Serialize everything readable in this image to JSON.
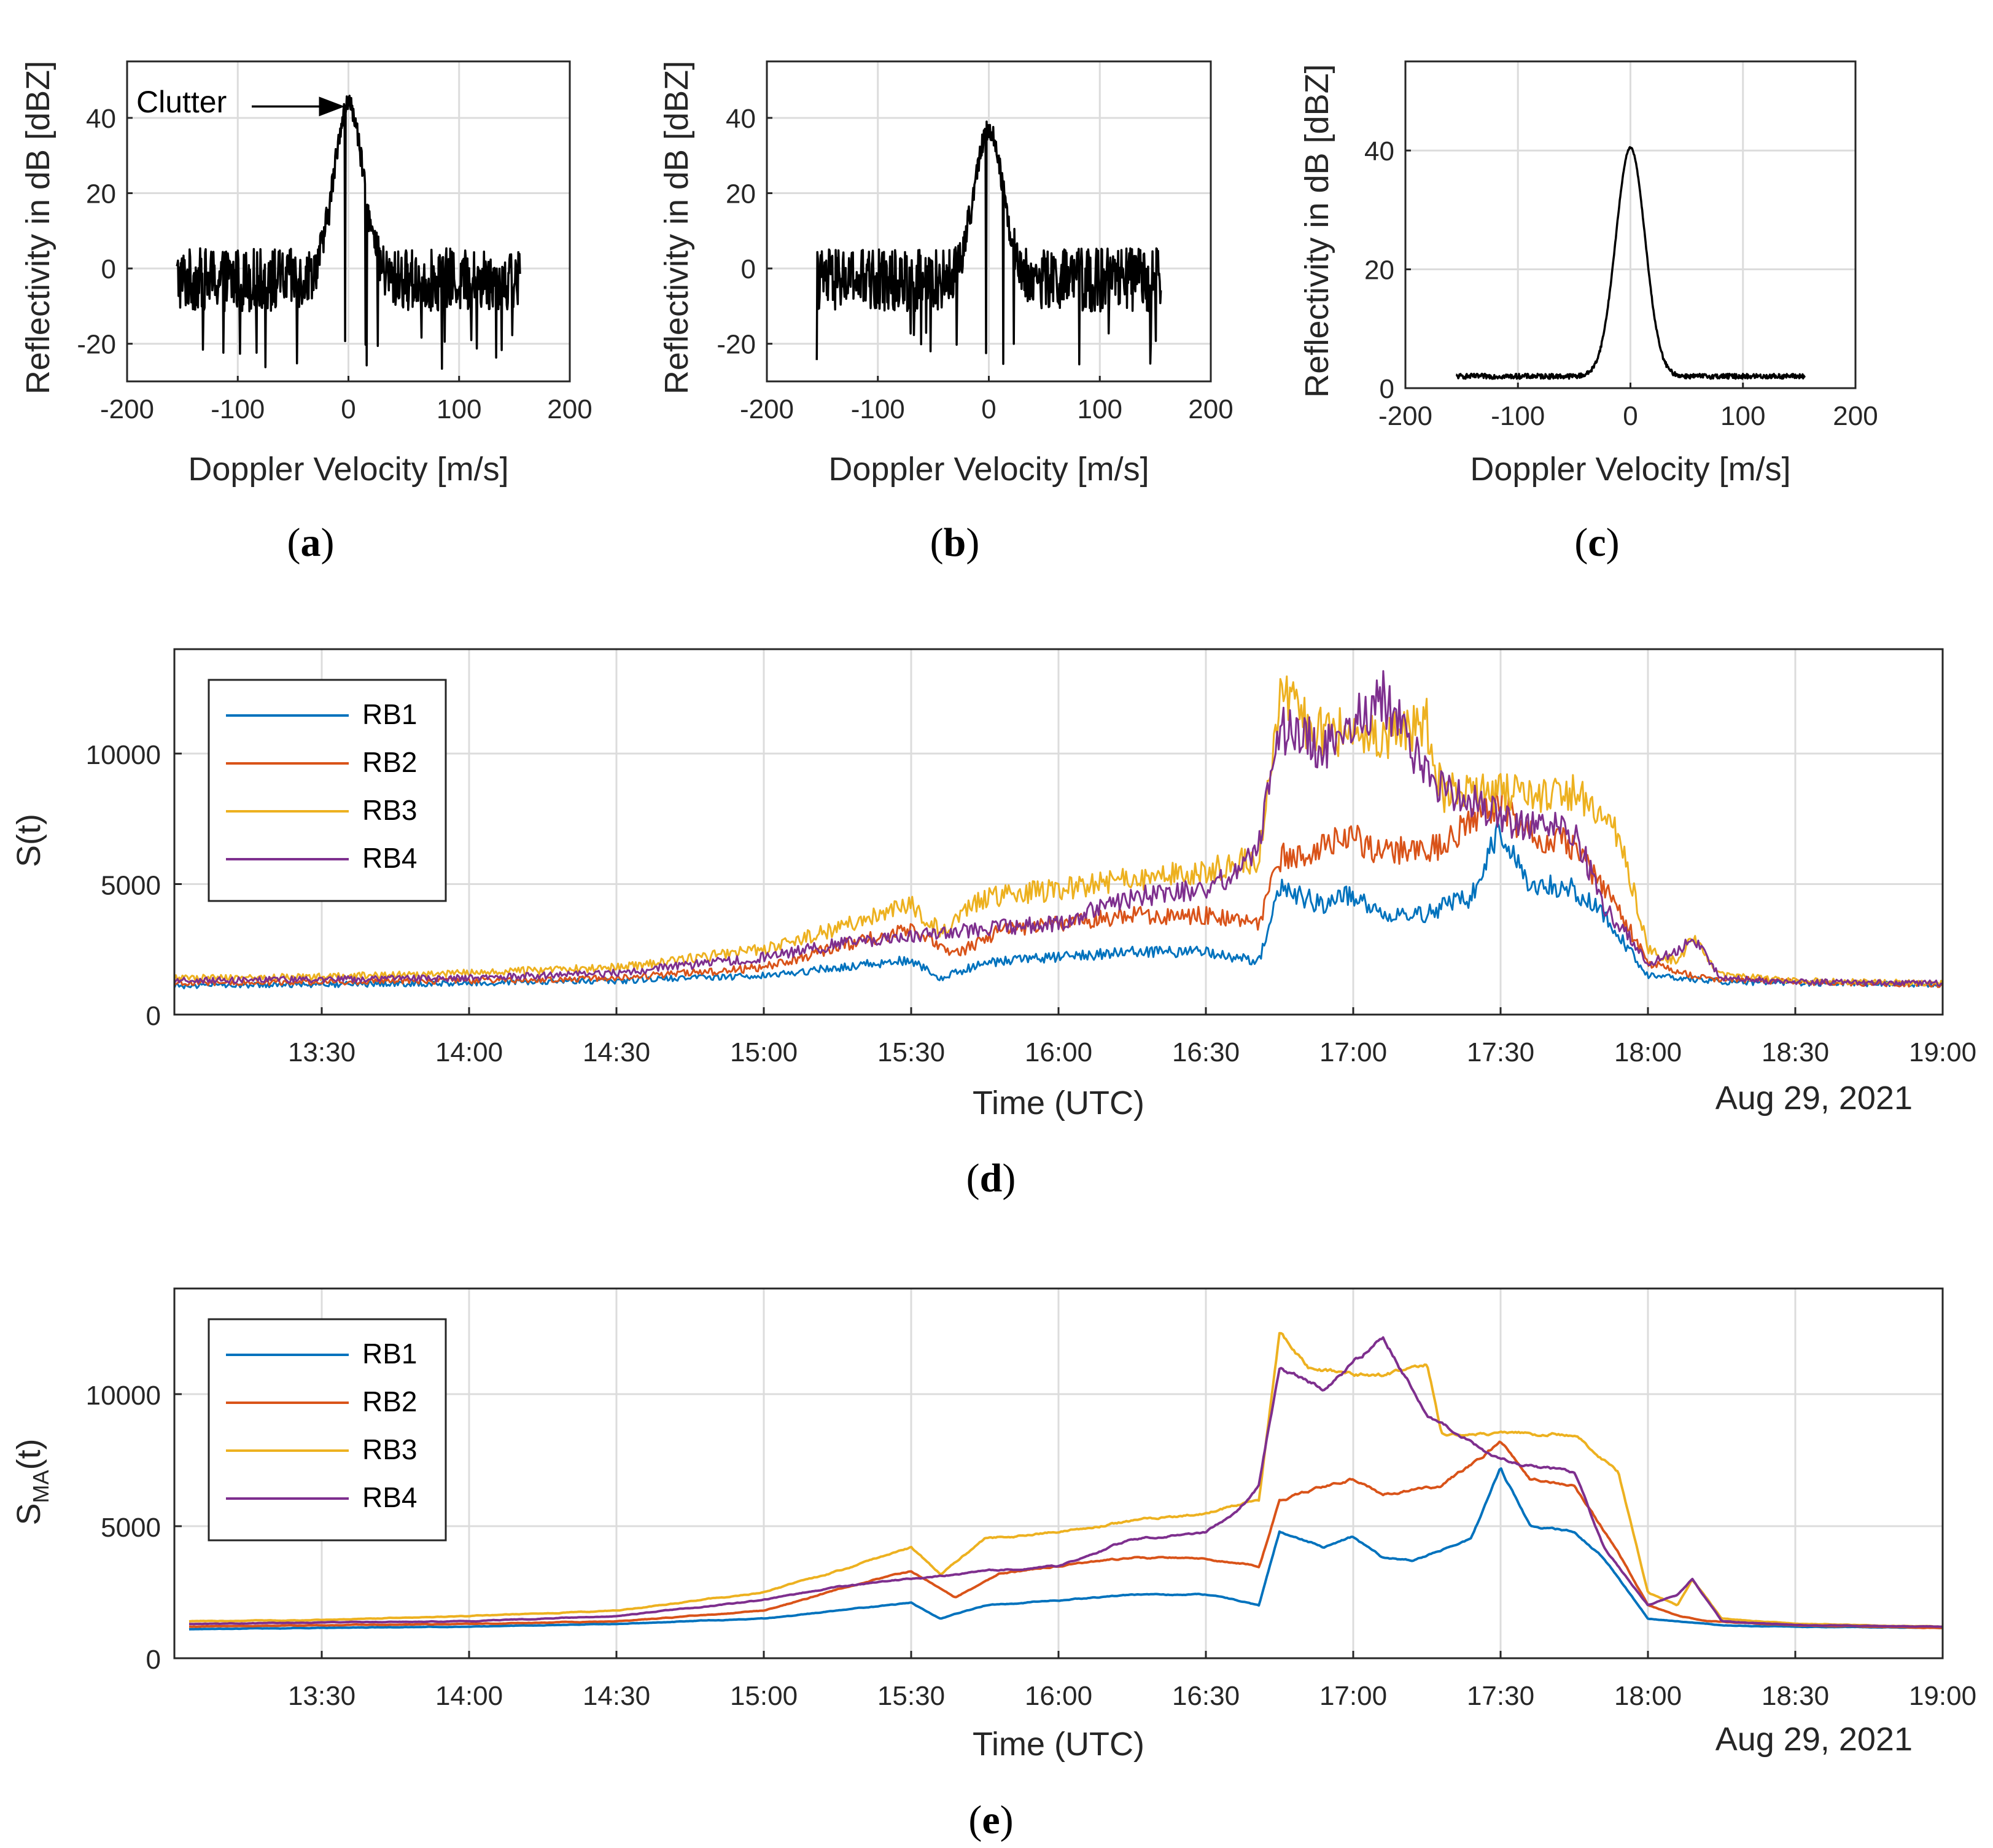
{
  "figure": {
    "panels": [
      "a",
      "b",
      "c",
      "d",
      "e"
    ]
  },
  "chart_data": [
    {
      "id": "a",
      "type": "line",
      "caption": "a",
      "xlabel": "Doppler Velocity [m/s]",
      "ylabel": "Reflectivity in dB [dBZ]",
      "xlim": [
        -200,
        200
      ],
      "ylim": [
        -30,
        55
      ],
      "xticks": [
        -200,
        -100,
        0,
        100,
        200
      ],
      "yticks": [
        -20,
        0,
        20,
        40
      ],
      "grid": true,
      "annotation": {
        "text": "Clutter",
        "arrow_to": [
          0,
          44
        ]
      },
      "series": [
        {
          "name": "spectrum",
          "color": "#000000",
          "shape": {
            "x_range": [
              -155,
              155
            ],
            "peak": 44,
            "peak_width": 13,
            "floor": -3,
            "noise_amplitude": 12,
            "deep_dip_min": -27
          }
        }
      ]
    },
    {
      "id": "b",
      "type": "line",
      "caption": "b",
      "xlabel": "Doppler Velocity [m/s]",
      "ylabel": "Reflectivity in dB [dBZ]",
      "xlim": [
        -200,
        200
      ],
      "ylim": [
        -30,
        55
      ],
      "xticks": [
        -200,
        -100,
        0,
        100,
        200
      ],
      "yticks": [
        -20,
        0,
        20,
        40
      ],
      "grid": true,
      "series": [
        {
          "name": "spectrum",
          "color": "#000000",
          "shape": {
            "x_range": [
              -155,
              155
            ],
            "peak": 37,
            "peak_width": 13,
            "floor": -3,
            "noise_amplitude": 12,
            "deep_dip_min": -26
          }
        }
      ]
    },
    {
      "id": "c",
      "type": "line",
      "caption": "c",
      "xlabel": "Doppler Velocity [m/s]",
      "ylabel": "Reflectivity in dB [dBZ]",
      "xlim": [
        -200,
        200
      ],
      "ylim": [
        0,
        55
      ],
      "xticks": [
        -200,
        -100,
        0,
        100,
        200
      ],
      "yticks": [
        0,
        20,
        40
      ],
      "grid": true,
      "series": [
        {
          "name": "spectrum",
          "color": "#000000",
          "shape": {
            "x_range": [
              -155,
              155
            ],
            "peak": 40.5,
            "peak_width": 13,
            "floor": 2,
            "noise_amplitude": 0.6
          }
        }
      ]
    },
    {
      "id": "d",
      "type": "line",
      "caption": "d",
      "xlabel": "Time (UTC)",
      "ylabel": "S(t)",
      "date_label": "Aug 29, 2021",
      "x_unit": "hours UTC",
      "xlim": [
        13.0,
        19.0
      ],
      "ylim": [
        0,
        14000
      ],
      "xtick_values": [
        13.5,
        14.0,
        14.5,
        15.0,
        15.5,
        16.0,
        16.5,
        17.0,
        17.5,
        18.0,
        18.5,
        19.0
      ],
      "xtick_labels": [
        "13:30",
        "14:00",
        "14:30",
        "15:00",
        "15:30",
        "16:00",
        "16:30",
        "17:00",
        "17:30",
        "18:00",
        "18:30",
        "19:00"
      ],
      "yticks": [
        0,
        5000,
        10000
      ],
      "ytick_labels": [
        "0",
        "5000",
        "10000"
      ],
      "legend_position": "top-left",
      "grid": true,
      "noise_amplitude": 0.09,
      "series": [
        {
          "name": "RB1",
          "color": "#0072BD",
          "x": [
            13.0,
            13.5,
            14.0,
            14.5,
            15.0,
            15.25,
            15.5,
            15.6,
            15.75,
            16.0,
            16.25,
            16.5,
            16.6,
            16.68,
            16.75,
            16.9,
            17.0,
            17.1,
            17.2,
            17.4,
            17.5,
            17.6,
            17.75,
            17.85,
            18.0,
            18.25,
            18.5,
            19.0
          ],
          "y": [
            1100,
            1150,
            1200,
            1300,
            1500,
            1800,
            2100,
            1400,
            2000,
            2200,
            2400,
            2400,
            2200,
            2000,
            4800,
            4200,
            4600,
            3800,
            3700,
            4500,
            7200,
            5000,
            4800,
            3800,
            1500,
            1250,
            1200,
            1150
          ]
        },
        {
          "name": "RB2",
          "color": "#D95319",
          "x": [
            13.0,
            13.5,
            14.0,
            14.5,
            15.0,
            15.25,
            15.5,
            15.65,
            15.8,
            16.0,
            16.25,
            16.5,
            16.6,
            16.68,
            16.75,
            17.0,
            17.1,
            17.3,
            17.5,
            17.6,
            17.75,
            17.9,
            18.0,
            18.1,
            18.2,
            18.5,
            19.0
          ],
          "y": [
            1200,
            1250,
            1300,
            1400,
            1800,
            2600,
            3300,
            2300,
            3200,
            3500,
            3800,
            3800,
            3600,
            3500,
            6000,
            6800,
            6200,
            6500,
            8200,
            6800,
            6500,
            4000,
            2000,
            1600,
            1400,
            1250,
            1150
          ]
        },
        {
          "name": "RB3",
          "color": "#EDB120",
          "x": [
            13.0,
            13.5,
            14.0,
            14.5,
            15.0,
            15.25,
            15.5,
            15.6,
            15.75,
            16.0,
            16.25,
            16.5,
            16.6,
            16.68,
            16.75,
            16.85,
            17.0,
            17.1,
            17.25,
            17.3,
            17.5,
            17.75,
            17.9,
            18.0,
            18.1,
            18.15,
            18.25,
            18.5,
            19.0
          ],
          "y": [
            1400,
            1450,
            1600,
            1800,
            2500,
            3300,
            4200,
            3200,
            4500,
            4800,
            5200,
            5500,
            5800,
            6000,
            12300,
            11000,
            10700,
            10700,
            11200,
            8500,
            8500,
            8500,
            7000,
            2500,
            2000,
            3000,
            1500,
            1300,
            1200
          ]
        },
        {
          "name": "RB4",
          "color": "#7E2F8E",
          "x": [
            13.0,
            13.5,
            14.0,
            14.5,
            15.0,
            15.25,
            15.5,
            15.75,
            16.0,
            16.25,
            16.5,
            16.6,
            16.68,
            16.75,
            16.9,
            17.1,
            17.25,
            17.5,
            17.75,
            17.85,
            18.0,
            18.1,
            18.15,
            18.25,
            18.5,
            19.0
          ],
          "y": [
            1300,
            1350,
            1400,
            1600,
            2200,
            2700,
            3000,
            3300,
            3500,
            4500,
            4800,
            5500,
            6500,
            11000,
            10200,
            12200,
            9200,
            7500,
            7000,
            4200,
            2000,
            2400,
            3000,
            1400,
            1250,
            1200
          ]
        }
      ]
    },
    {
      "id": "e",
      "type": "line",
      "caption": "e",
      "xlabel": "Time (UTC)",
      "ylabel": "S",
      "ylabel_subscript": "MA",
      "ylabel_suffix": "(t)",
      "date_label": "Aug 29, 2021",
      "x_unit": "hours UTC",
      "xlim": [
        13.0,
        19.0
      ],
      "ylim": [
        0,
        14000
      ],
      "xtick_values": [
        13.5,
        14.0,
        14.5,
        15.0,
        15.5,
        16.0,
        16.5,
        17.0,
        17.5,
        18.0,
        18.5,
        19.0
      ],
      "xtick_labels": [
        "13:30",
        "14:00",
        "14:30",
        "15:00",
        "15:30",
        "16:00",
        "16:30",
        "17:00",
        "17:30",
        "18:00",
        "18:30",
        "19:00"
      ],
      "yticks": [
        0,
        5000,
        10000
      ],
      "ytick_labels": [
        "0",
        "5000",
        "10000"
      ],
      "legend_position": "top-left",
      "grid": true,
      "noise_amplitude": 0.015,
      "series": [
        {
          "name": "RB1",
          "color": "#0072BD",
          "x": [
            13.05,
            13.5,
            14.0,
            14.5,
            15.0,
            15.25,
            15.5,
            15.6,
            15.75,
            16.0,
            16.25,
            16.5,
            16.6,
            16.68,
            16.75,
            16.9,
            17.0,
            17.1,
            17.2,
            17.4,
            17.5,
            17.6,
            17.75,
            17.85,
            18.0,
            18.25,
            18.5,
            19.0
          ],
          "y": [
            1100,
            1150,
            1200,
            1300,
            1500,
            1800,
            2100,
            1500,
            2000,
            2200,
            2400,
            2400,
            2200,
            2000,
            4800,
            4200,
            4600,
            3800,
            3700,
            4500,
            7200,
            5000,
            4800,
            3800,
            1500,
            1250,
            1200,
            1150
          ]
        },
        {
          "name": "RB2",
          "color": "#D95319",
          "x": [
            13.05,
            13.5,
            14.0,
            14.5,
            15.0,
            15.25,
            15.5,
            15.65,
            15.8,
            16.0,
            16.25,
            16.5,
            16.6,
            16.68,
            16.75,
            17.0,
            17.1,
            17.3,
            17.5,
            17.6,
            17.75,
            17.9,
            18.0,
            18.1,
            18.2,
            18.5,
            19.0
          ],
          "y": [
            1200,
            1250,
            1300,
            1400,
            1800,
            2600,
            3300,
            2300,
            3200,
            3500,
            3800,
            3800,
            3600,
            3500,
            6000,
            6800,
            6200,
            6500,
            8200,
            6800,
            6500,
            4000,
            2000,
            1600,
            1400,
            1250,
            1150
          ]
        },
        {
          "name": "RB3",
          "color": "#EDB120",
          "x": [
            13.05,
            13.5,
            14.0,
            14.5,
            15.0,
            15.25,
            15.5,
            15.6,
            15.75,
            16.0,
            16.25,
            16.5,
            16.6,
            16.68,
            16.75,
            16.85,
            17.0,
            17.1,
            17.25,
            17.3,
            17.5,
            17.75,
            17.9,
            18.0,
            18.1,
            18.15,
            18.25,
            18.5,
            19.0
          ],
          "y": [
            1400,
            1450,
            1600,
            1800,
            2500,
            3300,
            4200,
            3200,
            4500,
            4800,
            5200,
            5500,
            5800,
            6000,
            12300,
            11000,
            10700,
            10700,
            11200,
            8500,
            8500,
            8500,
            7000,
            2500,
            2000,
            3000,
            1500,
            1300,
            1200
          ]
        },
        {
          "name": "RB4",
          "color": "#7E2F8E",
          "x": [
            13.05,
            13.5,
            14.0,
            14.5,
            15.0,
            15.25,
            15.5,
            15.75,
            16.0,
            16.25,
            16.5,
            16.6,
            16.68,
            16.75,
            16.9,
            17.1,
            17.25,
            17.5,
            17.75,
            17.85,
            18.0,
            18.1,
            18.15,
            18.25,
            18.5,
            19.0
          ],
          "y": [
            1300,
            1350,
            1400,
            1600,
            2200,
            2700,
            3000,
            3300,
            3500,
            4500,
            4800,
            5500,
            6500,
            11000,
            10200,
            12200,
            9200,
            7500,
            7000,
            4200,
            2000,
            2400,
            3000,
            1400,
            1250,
            1200
          ]
        }
      ]
    }
  ]
}
